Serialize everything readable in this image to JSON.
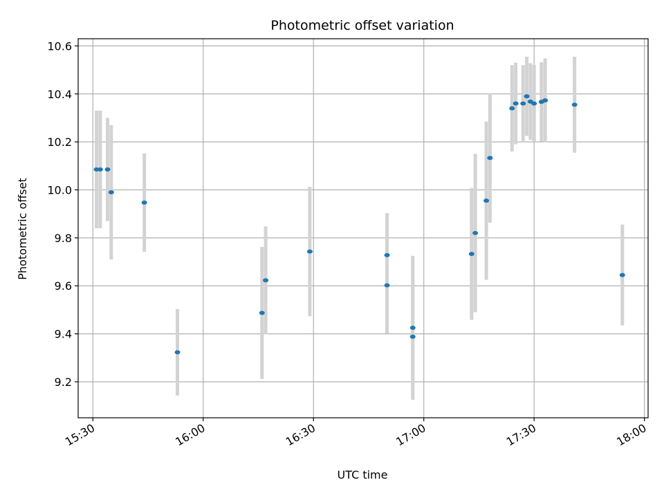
{
  "chart_data": {
    "type": "scatter",
    "title": "Photometric offset variation",
    "xlabel": "UTC time",
    "ylabel": "Photometric offset",
    "xlim": [
      "15:26",
      "18:01"
    ],
    "ylim": [
      9.05,
      10.63
    ],
    "grid": true,
    "x_ticks": [
      "15:30",
      "16:00",
      "16:30",
      "17:00",
      "17:30",
      "18:00"
    ],
    "y_ticks": [
      9.2,
      9.4,
      9.6,
      9.8,
      10.0,
      10.2,
      10.4,
      10.6
    ],
    "colors": {
      "point": "#1f77b4",
      "errorbar": "#d3d3d3",
      "grid": "#b0b0b0"
    },
    "series": [
      {
        "x": [
          "15:31",
          "15:32",
          "15:34",
          "15:35",
          "15:44",
          "15:53",
          "16:16",
          "16:17",
          "16:29",
          "16:50",
          "16:50",
          "16:57",
          "16:57",
          "17:13",
          "17:14",
          "17:17",
          "17:18",
          "17:24",
          "17:25",
          "17:27",
          "17:28",
          "17:29",
          "17:30",
          "17:32",
          "17:33",
          "17:41",
          "17:54"
        ],
        "y": [
          10.085,
          10.085,
          10.085,
          9.99,
          9.947,
          9.323,
          9.487,
          9.623,
          9.743,
          9.602,
          9.728,
          9.388,
          9.425,
          9.733,
          9.82,
          9.955,
          10.133,
          10.34,
          10.36,
          10.36,
          10.39,
          10.368,
          10.36,
          10.367,
          10.373,
          10.355,
          9.645
        ],
        "yerr": [
          0.245,
          0.245,
          0.215,
          0.28,
          0.205,
          0.18,
          0.275,
          0.225,
          0.27,
          0.2,
          0.175,
          0.21,
          0.3,
          0.275,
          0.33,
          0.33,
          0.27,
          0.18,
          0.17,
          0.16,
          0.165,
          0.16,
          0.16,
          0.165,
          0.175,
          0.2,
          0.21
        ]
      }
    ]
  }
}
